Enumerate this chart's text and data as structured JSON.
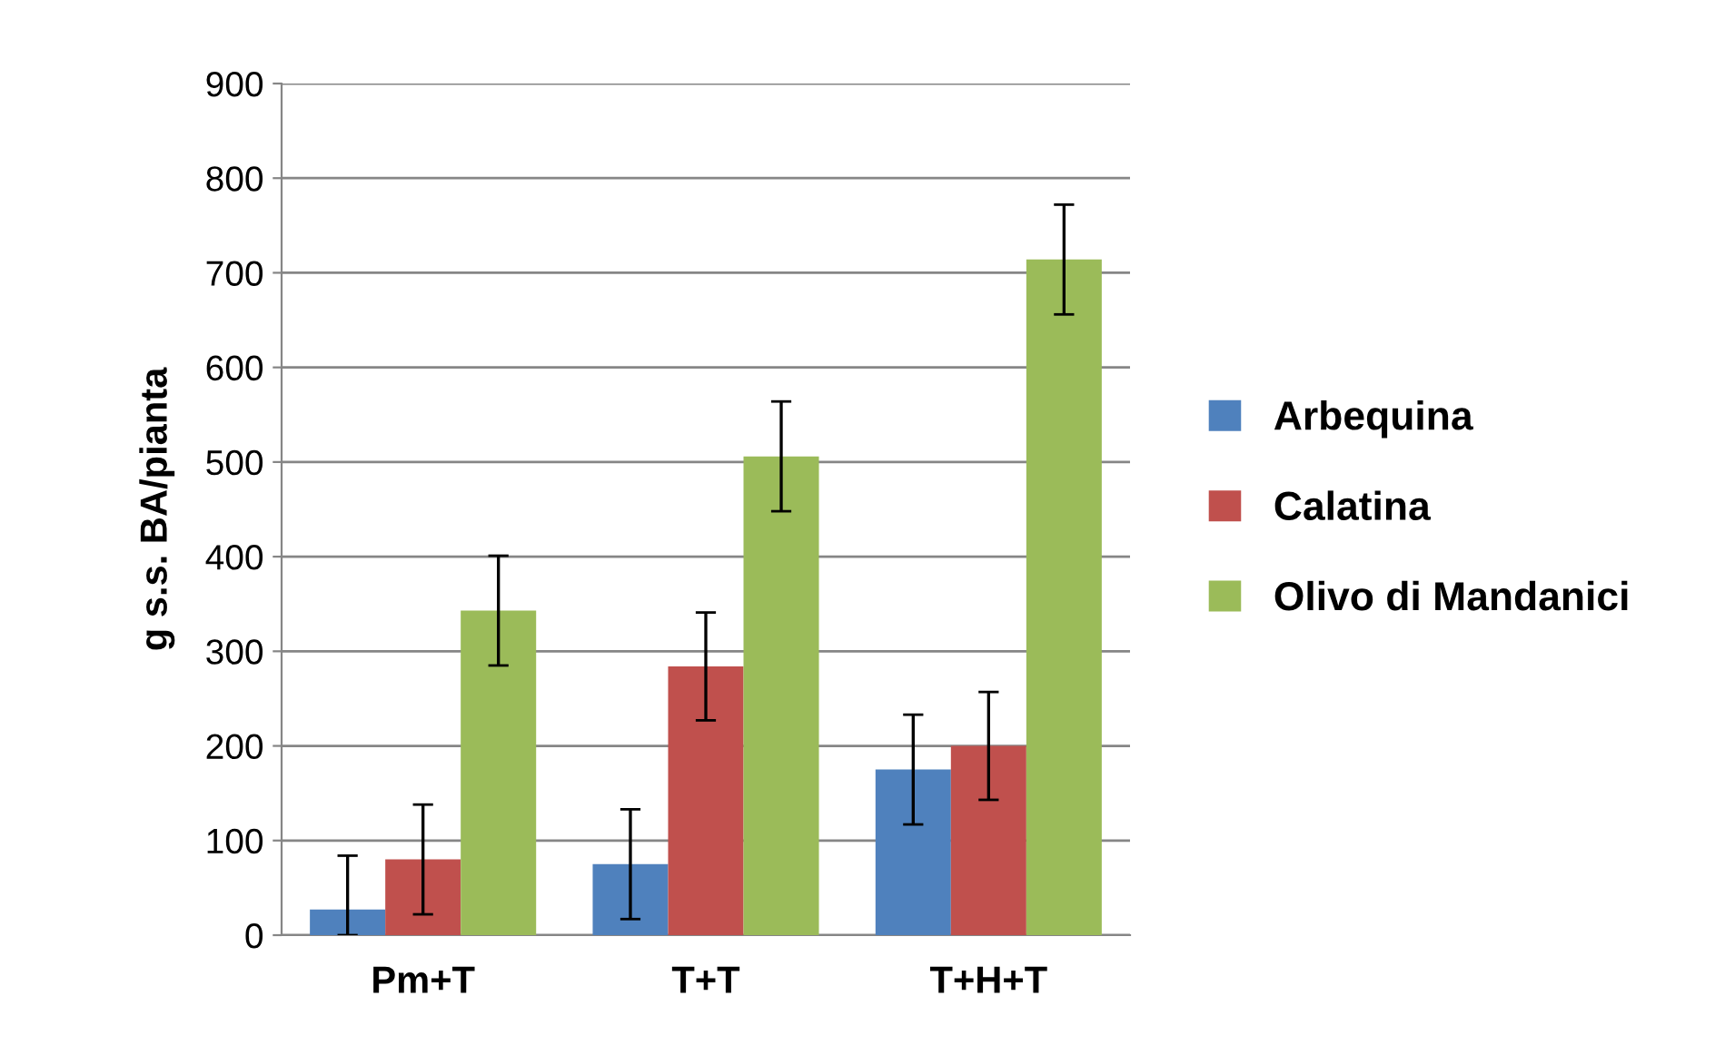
{
  "chart_data": {
    "type": "bar",
    "ylabel": "g s.s. BA/pianta",
    "categories": [
      "Pm+T",
      "T+T",
      "T+H+T"
    ],
    "series": [
      {
        "name": "Arbequina",
        "color": "#4f81bd",
        "values": [
          27,
          75,
          175
        ],
        "errors": [
          [
            0,
            84
          ],
          58,
          58
        ]
      },
      {
        "name": "Calatina",
        "color": "#c0504d",
        "values": [
          80,
          284,
          200
        ],
        "errors": [
          58,
          57,
          57
        ]
      },
      {
        "name": "Olivo di Mandanici",
        "color": "#9bbb59",
        "values": [
          343,
          506,
          714
        ],
        "errors": [
          58,
          58,
          58
        ]
      }
    ],
    "ylim": [
      0,
      900
    ],
    "yticks": [
      0,
      100,
      200,
      300,
      400,
      500,
      600,
      700,
      800,
      900
    ],
    "grid": "y",
    "legend": "right"
  }
}
